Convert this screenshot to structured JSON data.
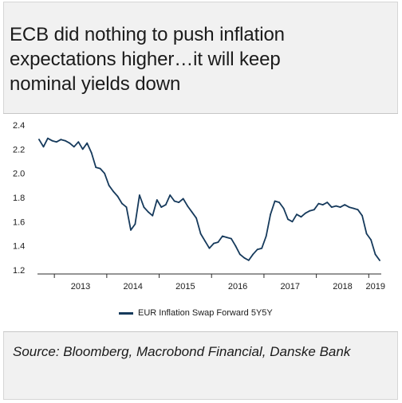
{
  "title": "ECB did nothing to push inflation\nexpectations higher…it will keep\nnominal yields down",
  "source": "Source: Bloomberg, Macrobond Financial, Danske Bank",
  "colors": {
    "line": "#163a5c",
    "panel": "#f1f1f1",
    "text": "#1b1b1b"
  },
  "chart_data": {
    "type": "line",
    "title": "",
    "xlabel": "",
    "ylabel": "",
    "ylim": [
      1.2,
      2.4
    ],
    "yticks": [
      "2.4",
      "2.2",
      "2.0",
      "1.8",
      "1.6",
      "1.4",
      "1.2"
    ],
    "xticks": [
      "2013",
      "2014",
      "2015",
      "2016",
      "2017",
      "2018",
      "2019"
    ],
    "grid": false,
    "legend_position": "bottom",
    "series": [
      {
        "name": "EUR Inflation Swap Forward 5Y5Y",
        "x": [
          "2012-09",
          "2012-10",
          "2012-11",
          "2012-12",
          "2013-01",
          "2013-02",
          "2013-03",
          "2013-04",
          "2013-05",
          "2013-06",
          "2013-07",
          "2013-08",
          "2013-09",
          "2013-10",
          "2013-11",
          "2013-12",
          "2014-01",
          "2014-02",
          "2014-03",
          "2014-04",
          "2014-05",
          "2014-06",
          "2014-07",
          "2014-08",
          "2014-09",
          "2014-10",
          "2014-11",
          "2014-12",
          "2015-01",
          "2015-02",
          "2015-03",
          "2015-04",
          "2015-05",
          "2015-06",
          "2015-07",
          "2015-08",
          "2015-09",
          "2015-10",
          "2015-11",
          "2015-12",
          "2016-01",
          "2016-02",
          "2016-03",
          "2016-04",
          "2016-05",
          "2016-06",
          "2016-07",
          "2016-08",
          "2016-09",
          "2016-10",
          "2016-11",
          "2016-12",
          "2017-01",
          "2017-02",
          "2017-03",
          "2017-04",
          "2017-05",
          "2017-06",
          "2017-07",
          "2017-08",
          "2017-09",
          "2017-10",
          "2017-11",
          "2017-12",
          "2018-01",
          "2018-02",
          "2018-03",
          "2018-04",
          "2018-05",
          "2018-06",
          "2018-07",
          "2018-08",
          "2018-09",
          "2018-10",
          "2018-11",
          "2018-12",
          "2019-01",
          "2019-02",
          "2019-03"
        ],
        "values": [
          2.28,
          2.22,
          2.29,
          2.27,
          2.26,
          2.28,
          2.27,
          2.25,
          2.22,
          2.26,
          2.2,
          2.25,
          2.17,
          2.05,
          2.04,
          2.0,
          1.9,
          1.85,
          1.81,
          1.75,
          1.72,
          1.53,
          1.58,
          1.82,
          1.72,
          1.68,
          1.65,
          1.78,
          1.72,
          1.74,
          1.82,
          1.77,
          1.76,
          1.79,
          1.73,
          1.68,
          1.63,
          1.5,
          1.44,
          1.38,
          1.42,
          1.43,
          1.48,
          1.47,
          1.46,
          1.4,
          1.33,
          1.3,
          1.28,
          1.33,
          1.37,
          1.38,
          1.48,
          1.66,
          1.77,
          1.76,
          1.71,
          1.62,
          1.6,
          1.66,
          1.64,
          1.67,
          1.69,
          1.7,
          1.75,
          1.74,
          1.76,
          1.72,
          1.73,
          1.72,
          1.74,
          1.72,
          1.71,
          1.7,
          1.65,
          1.5,
          1.45,
          1.33,
          1.28
        ]
      }
    ]
  }
}
